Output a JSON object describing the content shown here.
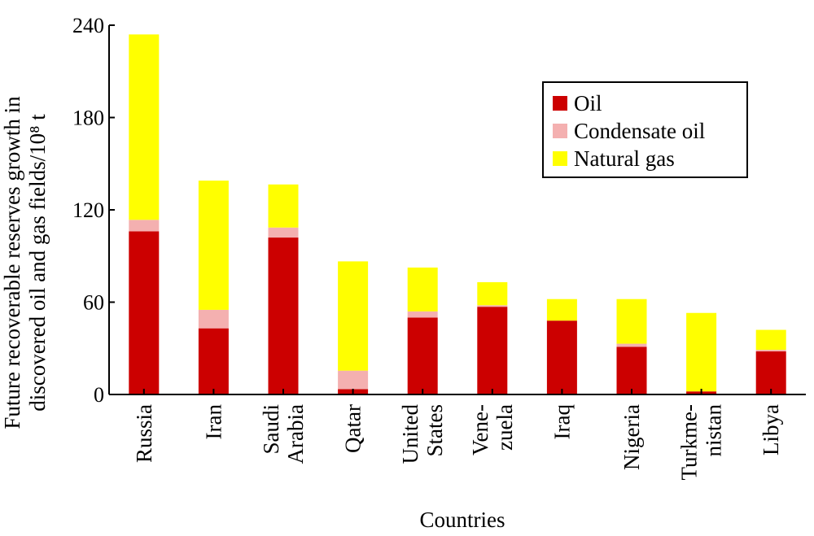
{
  "chart_data": {
    "type": "bar",
    "stacked": true,
    "xlabel": "Countries",
    "ylabel_lines": [
      "Future recoverable reserves growth in",
      "discovered oil and gas fields/10⁸ t"
    ],
    "ylim": [
      0,
      240
    ],
    "yticks": [
      0,
      60,
      120,
      180,
      240
    ],
    "categories": [
      [
        "Russia"
      ],
      [
        "Iran"
      ],
      [
        "Saudi",
        "Arabia"
      ],
      [
        "Qatar"
      ],
      [
        "United",
        "States"
      ],
      [
        "Vene-",
        "zuela"
      ],
      [
        "Iraq"
      ],
      [
        "Nigeria"
      ],
      [
        "Turkme-",
        "nistan"
      ],
      [
        "Libya"
      ]
    ],
    "series": [
      {
        "name": "Oil",
        "color": "#cc0000",
        "values": [
          106,
          43,
          102,
          3.5,
          50,
          57,
          48,
          31,
          2,
          28
        ]
      },
      {
        "name": "Condensate oil",
        "color": "#f4b0b0",
        "values": [
          7.5,
          12,
          6.5,
          12,
          4,
          1,
          0,
          2,
          0,
          1
        ]
      },
      {
        "name": "Natural gas",
        "color": "#ffff00",
        "values": [
          120.5,
          84,
          28,
          71,
          28.5,
          15,
          14,
          29,
          51,
          13
        ]
      }
    ],
    "legend_position": "top-right",
    "grid": false
  }
}
